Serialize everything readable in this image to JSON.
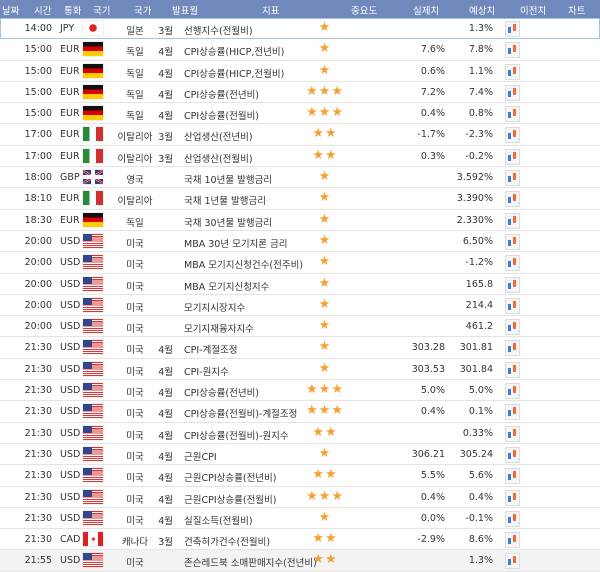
{
  "header": [
    "날짜",
    "시간",
    "통화",
    "국기",
    "국가",
    "발표월",
    "지표",
    "중요도",
    "실제치",
    "예상치",
    "이전치",
    "차트"
  ],
  "rows": [
    {
      "time": "14:00",
      "cur": "JPY",
      "flag": "jp",
      "country": "일본",
      "month": "3월",
      "indicator": "선행지수(전월비)",
      "stars": 1,
      "forecast": "",
      "previous": "1.3%"
    },
    {
      "time": "15:00",
      "cur": "EUR",
      "flag": "de",
      "country": "독일",
      "month": "4월",
      "indicator": "CPI상승률(HICP,전년비)",
      "stars": 1,
      "forecast": "7.6%",
      "previous": "7.8%"
    },
    {
      "time": "15:00",
      "cur": "EUR",
      "flag": "de",
      "country": "독일",
      "month": "4월",
      "indicator": "CPI상승률(HICP,전월비)",
      "stars": 1,
      "forecast": "0.6%",
      "previous": "1.1%"
    },
    {
      "time": "15:00",
      "cur": "EUR",
      "flag": "de",
      "country": "독일",
      "month": "4월",
      "indicator": "CPI상승률(전년비)",
      "stars": 3,
      "forecast": "7.2%",
      "previous": "7.4%"
    },
    {
      "time": "15:00",
      "cur": "EUR",
      "flag": "de",
      "country": "독일",
      "month": "4월",
      "indicator": "CPI상승률(전월비)",
      "stars": 3,
      "forecast": "0.4%",
      "previous": "0.8%"
    },
    {
      "time": "17:00",
      "cur": "EUR",
      "flag": "it",
      "country": "이탈리아",
      "month": "3월",
      "indicator": "산업생산(전년비)",
      "stars": 2,
      "forecast": "-1.7%",
      "previous": "-2.3%"
    },
    {
      "time": "17:00",
      "cur": "EUR",
      "flag": "it",
      "country": "이탈리아",
      "month": "3월",
      "indicator": "산업생산(전월비)",
      "stars": 2,
      "forecast": "0.3%",
      "previous": "-0.2%"
    },
    {
      "time": "18:00",
      "cur": "GBP",
      "flag": "gb",
      "country": "영국",
      "month": "",
      "indicator": "국채 10년물 발행금리",
      "stars": 1,
      "forecast": "",
      "previous": "3.592%"
    },
    {
      "time": "18:10",
      "cur": "EUR",
      "flag": "it",
      "country": "이탈리아",
      "month": "",
      "indicator": "국채 1년물 발행금리",
      "stars": 1,
      "forecast": "",
      "previous": "3.390%"
    },
    {
      "time": "18:30",
      "cur": "EUR",
      "flag": "de",
      "country": "독일",
      "month": "",
      "indicator": "국채 30년물 발행금리",
      "stars": 1,
      "forecast": "",
      "previous": "2.330%"
    },
    {
      "time": "20:00",
      "cur": "USD",
      "flag": "us",
      "country": "미국",
      "month": "",
      "indicator": "MBA 30년 모기지론 금리",
      "stars": 1,
      "forecast": "",
      "previous": "6.50%"
    },
    {
      "time": "20:00",
      "cur": "USD",
      "flag": "us",
      "country": "미국",
      "month": "",
      "indicator": "MBA 모기지신청건수(전주비)",
      "stars": 1,
      "forecast": "",
      "previous": "-1.2%"
    },
    {
      "time": "20:00",
      "cur": "USD",
      "flag": "us",
      "country": "미국",
      "month": "",
      "indicator": "MBA 모기지신청지수",
      "stars": 1,
      "forecast": "",
      "previous": "165.8"
    },
    {
      "time": "20:00",
      "cur": "USD",
      "flag": "us",
      "country": "미국",
      "month": "",
      "indicator": "모기지시장지수",
      "stars": 1,
      "forecast": "",
      "previous": "214.4"
    },
    {
      "time": "20:00",
      "cur": "USD",
      "flag": "us",
      "country": "미국",
      "month": "",
      "indicator": "모기지재융자지수",
      "stars": 1,
      "forecast": "",
      "previous": "461.2"
    },
    {
      "time": "21:30",
      "cur": "USD",
      "flag": "us",
      "country": "미국",
      "month": "4월",
      "indicator": "CPI-계절조정",
      "stars": 1,
      "forecast": "303.28",
      "previous": "301.81"
    },
    {
      "time": "21:30",
      "cur": "USD",
      "flag": "us",
      "country": "미국",
      "month": "4월",
      "indicator": "CPI-원지수",
      "stars": 1,
      "forecast": "303.53",
      "previous": "301.84"
    },
    {
      "time": "21:30",
      "cur": "USD",
      "flag": "us",
      "country": "미국",
      "month": "4월",
      "indicator": "CPI상승률(전년비)",
      "stars": 3,
      "forecast": "5.0%",
      "previous": "5.0%"
    },
    {
      "time": "21:30",
      "cur": "USD",
      "flag": "us",
      "country": "미국",
      "month": "4월",
      "indicator": "CPI상승률(전월비)-계절조정",
      "stars": 3,
      "forecast": "0.4%",
      "previous": "0.1%"
    },
    {
      "time": "21:30",
      "cur": "USD",
      "flag": "us",
      "country": "미국",
      "month": "4월",
      "indicator": "CPI상승률(전월비)-원지수",
      "stars": 2,
      "forecast": "",
      "previous": "0.33%"
    },
    {
      "time": "21:30",
      "cur": "USD",
      "flag": "us",
      "country": "미국",
      "month": "4월",
      "indicator": "근원CPI",
      "stars": 1,
      "forecast": "306.21",
      "previous": "305.24"
    },
    {
      "time": "21:30",
      "cur": "USD",
      "flag": "us",
      "country": "미국",
      "month": "4월",
      "indicator": "근원CPI상승률(전년비)",
      "stars": 2,
      "forecast": "5.5%",
      "previous": "5.6%"
    },
    {
      "time": "21:30",
      "cur": "USD",
      "flag": "us",
      "country": "미국",
      "month": "4월",
      "indicator": "근원CPI상승률(전월비)",
      "stars": 3,
      "forecast": "0.4%",
      "previous": "0.4%"
    },
    {
      "time": "21:30",
      "cur": "USD",
      "flag": "us",
      "country": "미국",
      "month": "4월",
      "indicator": "실질소득(전월비)",
      "stars": 1,
      "forecast": "0.0%",
      "previous": "-0.1%"
    },
    {
      "time": "21:30",
      "cur": "CAD",
      "flag": "ca",
      "country": "캐나다",
      "month": "3월",
      "indicator": "건축허가건수(전월비)",
      "stars": 2,
      "forecast": "-2.9%",
      "previous": "8.6%"
    },
    {
      "time": "21:55",
      "cur": "USD",
      "flag": "us",
      "country": "미국",
      "month": "",
      "indicator": "존슨레드북 소매판매지수(전년비)",
      "stars": 2,
      "forecast": "",
      "previous": "1.3%"
    }
  ],
  "colors": {
    "header": "#7088bb",
    "star": "#f5a033"
  }
}
